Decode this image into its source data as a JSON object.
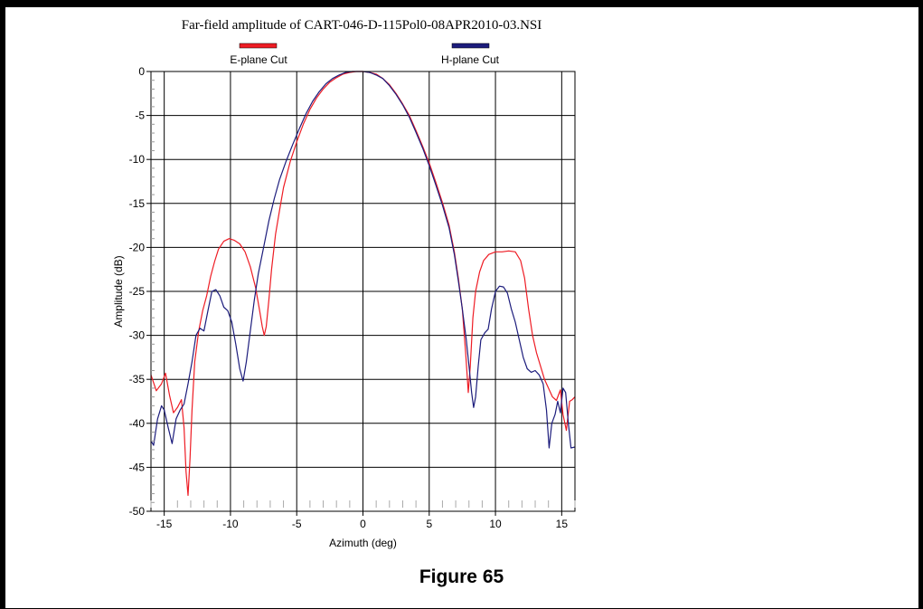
{
  "figure": {
    "caption": "Figure 65"
  },
  "chart_data": {
    "type": "line",
    "title": "Far-field amplitude of CART-046-D-115Pol0-08APR2010-03.NSI",
    "xlabel": "Azimuth (deg)",
    "ylabel": "Amplitude (dB)",
    "xlim": [
      -16,
      16
    ],
    "ylim": [
      -50,
      0
    ],
    "xticks": [
      -15,
      -10,
      -5,
      0,
      5,
      10,
      15
    ],
    "yticks": [
      0,
      -5,
      -10,
      -15,
      -20,
      -25,
      -30,
      -35,
      -40,
      -45,
      -50
    ],
    "grid": true,
    "legend_position": "top",
    "series": [
      {
        "name": "E-plane Cut",
        "color": "#ee1c24",
        "points": [
          [
            -16.0,
            -34.5
          ],
          [
            -15.6,
            -36.3
          ],
          [
            -15.2,
            -35.5
          ],
          [
            -14.9,
            -34.3
          ],
          [
            -14.6,
            -36.8
          ],
          [
            -14.3,
            -38.8
          ],
          [
            -14.0,
            -38.2
          ],
          [
            -13.7,
            -37.3
          ],
          [
            -13.5,
            -40.5
          ],
          [
            -13.35,
            -45.5
          ],
          [
            -13.2,
            -48.2
          ],
          [
            -13.05,
            -44.0
          ],
          [
            -12.9,
            -38.5
          ],
          [
            -12.7,
            -33.0
          ],
          [
            -12.4,
            -29.5
          ],
          [
            -12.1,
            -27.2
          ],
          [
            -11.8,
            -25.5
          ],
          [
            -11.5,
            -23.3
          ],
          [
            -11.2,
            -21.6
          ],
          [
            -10.9,
            -20.2
          ],
          [
            -10.5,
            -19.3
          ],
          [
            -10.1,
            -19.0
          ],
          [
            -9.7,
            -19.2
          ],
          [
            -9.3,
            -19.6
          ],
          [
            -8.9,
            -20.5
          ],
          [
            -8.5,
            -22.2
          ],
          [
            -8.1,
            -24.6
          ],
          [
            -7.8,
            -27.2
          ],
          [
            -7.6,
            -29.0
          ],
          [
            -7.45,
            -30.0
          ],
          [
            -7.3,
            -29.0
          ],
          [
            -7.1,
            -26.0
          ],
          [
            -6.9,
            -22.5
          ],
          [
            -6.6,
            -18.5
          ],
          [
            -6.3,
            -15.8
          ],
          [
            -6.0,
            -13.2
          ],
          [
            -5.5,
            -10.3
          ],
          [
            -5.0,
            -8.0
          ],
          [
            -4.5,
            -6.0
          ],
          [
            -4.0,
            -4.3
          ],
          [
            -3.5,
            -3.0
          ],
          [
            -3.0,
            -2.0
          ],
          [
            -2.5,
            -1.2
          ],
          [
            -2.0,
            -0.7
          ],
          [
            -1.5,
            -0.3
          ],
          [
            -1.0,
            -0.1
          ],
          [
            -0.5,
            0.0
          ],
          [
            0.0,
            0.0
          ],
          [
            0.5,
            -0.1
          ],
          [
            1.0,
            -0.3
          ],
          [
            1.5,
            -0.8
          ],
          [
            2.0,
            -1.5
          ],
          [
            2.5,
            -2.5
          ],
          [
            3.0,
            -3.7
          ],
          [
            3.5,
            -5.0
          ],
          [
            4.0,
            -6.7
          ],
          [
            4.5,
            -8.5
          ],
          [
            5.0,
            -10.4
          ],
          [
            5.5,
            -12.6
          ],
          [
            6.0,
            -14.9
          ],
          [
            6.5,
            -17.5
          ],
          [
            6.9,
            -20.5
          ],
          [
            7.2,
            -23.5
          ],
          [
            7.5,
            -27.0
          ],
          [
            7.75,
            -32.0
          ],
          [
            7.95,
            -36.5
          ],
          [
            8.1,
            -33.5
          ],
          [
            8.3,
            -28.0
          ],
          [
            8.5,
            -25.0
          ],
          [
            8.8,
            -22.8
          ],
          [
            9.1,
            -21.5
          ],
          [
            9.5,
            -20.8
          ],
          [
            10.0,
            -20.5
          ],
          [
            10.5,
            -20.5
          ],
          [
            11.0,
            -20.4
          ],
          [
            11.5,
            -20.5
          ],
          [
            11.9,
            -21.5
          ],
          [
            12.2,
            -23.5
          ],
          [
            12.5,
            -27.0
          ],
          [
            12.8,
            -30.0
          ],
          [
            13.1,
            -32.0
          ],
          [
            13.4,
            -33.5
          ],
          [
            13.7,
            -35.0
          ],
          [
            14.0,
            -36.0
          ],
          [
            14.3,
            -37.0
          ],
          [
            14.6,
            -37.4
          ],
          [
            14.9,
            -36.2
          ],
          [
            15.1,
            -39.0
          ],
          [
            15.35,
            -40.8
          ],
          [
            15.6,
            -37.5
          ],
          [
            15.8,
            -37.3
          ],
          [
            16.0,
            -37.0
          ]
        ]
      },
      {
        "name": "H-plane Cut",
        "color": "#1c1c7c",
        "points": [
          [
            -16.0,
            -42.0
          ],
          [
            -15.8,
            -42.5
          ],
          [
            -15.5,
            -39.5
          ],
          [
            -15.2,
            -38.0
          ],
          [
            -15.0,
            -38.5
          ],
          [
            -14.7,
            -40.5
          ],
          [
            -14.4,
            -42.3
          ],
          [
            -14.1,
            -39.5
          ],
          [
            -13.8,
            -38.5
          ],
          [
            -13.5,
            -37.8
          ],
          [
            -13.2,
            -35.5
          ],
          [
            -12.9,
            -33.0
          ],
          [
            -12.6,
            -30.0
          ],
          [
            -12.3,
            -29.2
          ],
          [
            -12.0,
            -29.5
          ],
          [
            -11.7,
            -27.2
          ],
          [
            -11.4,
            -25.0
          ],
          [
            -11.1,
            -24.8
          ],
          [
            -10.8,
            -25.5
          ],
          [
            -10.5,
            -26.8
          ],
          [
            -10.2,
            -27.2
          ],
          [
            -9.9,
            -28.5
          ],
          [
            -9.6,
            -31.0
          ],
          [
            -9.3,
            -33.8
          ],
          [
            -9.05,
            -35.2
          ],
          [
            -8.8,
            -33.0
          ],
          [
            -8.5,
            -29.5
          ],
          [
            -8.2,
            -26.0
          ],
          [
            -7.9,
            -23.0
          ],
          [
            -7.5,
            -20.0
          ],
          [
            -7.1,
            -17.0
          ],
          [
            -6.7,
            -14.5
          ],
          [
            -6.3,
            -12.3
          ],
          [
            -5.8,
            -10.2
          ],
          [
            -5.3,
            -8.3
          ],
          [
            -4.8,
            -6.5
          ],
          [
            -4.3,
            -4.8
          ],
          [
            -3.8,
            -3.4
          ],
          [
            -3.3,
            -2.3
          ],
          [
            -2.8,
            -1.4
          ],
          [
            -2.3,
            -0.8
          ],
          [
            -1.8,
            -0.4
          ],
          [
            -1.3,
            -0.1
          ],
          [
            -0.8,
            0.0
          ],
          [
            0.0,
            0.0
          ],
          [
            0.5,
            -0.1
          ],
          [
            1.0,
            -0.4
          ],
          [
            1.5,
            -0.8
          ],
          [
            2.0,
            -1.6
          ],
          [
            2.5,
            -2.6
          ],
          [
            3.0,
            -3.8
          ],
          [
            3.5,
            -5.2
          ],
          [
            4.0,
            -6.9
          ],
          [
            4.5,
            -8.7
          ],
          [
            5.0,
            -10.7
          ],
          [
            5.5,
            -12.9
          ],
          [
            6.0,
            -15.2
          ],
          [
            6.5,
            -17.8
          ],
          [
            6.9,
            -20.8
          ],
          [
            7.2,
            -23.8
          ],
          [
            7.5,
            -27.0
          ],
          [
            7.8,
            -30.5
          ],
          [
            8.0,
            -33.5
          ],
          [
            8.2,
            -36.5
          ],
          [
            8.35,
            -38.2
          ],
          [
            8.5,
            -37.0
          ],
          [
            8.7,
            -33.5
          ],
          [
            8.9,
            -30.5
          ],
          [
            9.2,
            -29.7
          ],
          [
            9.45,
            -29.3
          ],
          [
            9.7,
            -27.0
          ],
          [
            10.0,
            -25.0
          ],
          [
            10.3,
            -24.4
          ],
          [
            10.6,
            -24.5
          ],
          [
            10.9,
            -25.2
          ],
          [
            11.2,
            -27.0
          ],
          [
            11.5,
            -28.5
          ],
          [
            11.8,
            -30.5
          ],
          [
            12.1,
            -32.5
          ],
          [
            12.4,
            -33.8
          ],
          [
            12.7,
            -34.2
          ],
          [
            13.0,
            -34.0
          ],
          [
            13.3,
            -34.5
          ],
          [
            13.6,
            -35.5
          ],
          [
            13.85,
            -38.5
          ],
          [
            14.05,
            -42.8
          ],
          [
            14.25,
            -40.0
          ],
          [
            14.5,
            -39.0
          ],
          [
            14.7,
            -37.5
          ],
          [
            14.9,
            -38.8
          ],
          [
            15.1,
            -36.0
          ],
          [
            15.3,
            -36.5
          ],
          [
            15.5,
            -40.0
          ],
          [
            15.7,
            -42.8
          ],
          [
            16.0,
            -42.7
          ]
        ]
      }
    ]
  }
}
